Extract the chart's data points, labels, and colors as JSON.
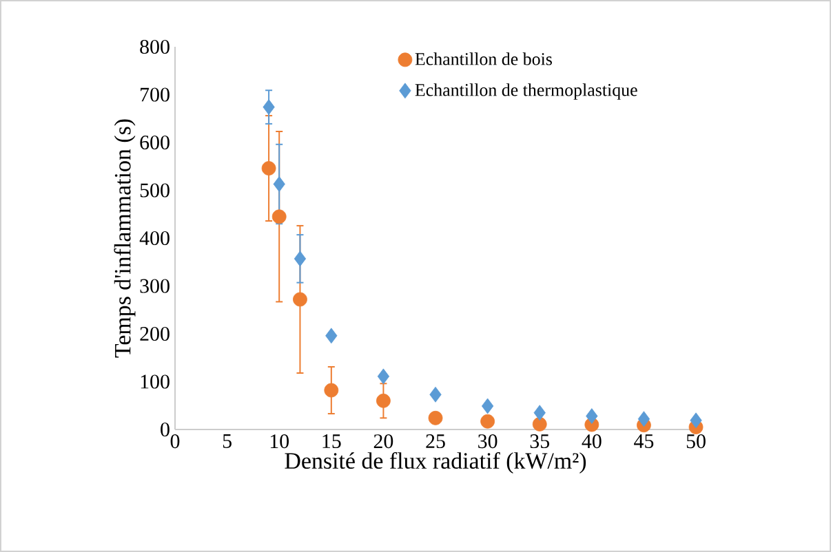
{
  "chart_data": {
    "type": "scatter",
    "xlabel": "Densité de flux radiatif (kW/m²)",
    "ylabel": "Temps d'inflammation (s)",
    "x": [
      9,
      10,
      12,
      15,
      20,
      25,
      30,
      35,
      40,
      45,
      50
    ],
    "xlim": [
      0,
      50
    ],
    "xticks": [
      0,
      5,
      10,
      15,
      20,
      25,
      30,
      35,
      40,
      45,
      50
    ],
    "ylim": [
      0,
      800
    ],
    "yticks": [
      0,
      100,
      200,
      300,
      400,
      500,
      600,
      700,
      800
    ],
    "legend": "top right",
    "grid": false,
    "series": [
      {
        "name": "Echantillon de bois",
        "color": "#ed7d31",
        "marker": "circle",
        "values": [
          546,
          445,
          272,
          82,
          60,
          24,
          17,
          11,
          10,
          9,
          5
        ],
        "errors": [
          110,
          178,
          154,
          49,
          36,
          null,
          null,
          null,
          null,
          null,
          null
        ]
      },
      {
        "name": "Echantillon de thermoplastique",
        "color": "#5b9bd5",
        "marker": "diamond",
        "values": [
          674,
          513,
          357,
          196,
          111,
          73,
          49,
          35,
          28,
          22,
          19
        ],
        "errors": [
          35,
          83,
          50,
          null,
          null,
          null,
          null,
          null,
          null,
          null,
          null
        ]
      }
    ]
  }
}
